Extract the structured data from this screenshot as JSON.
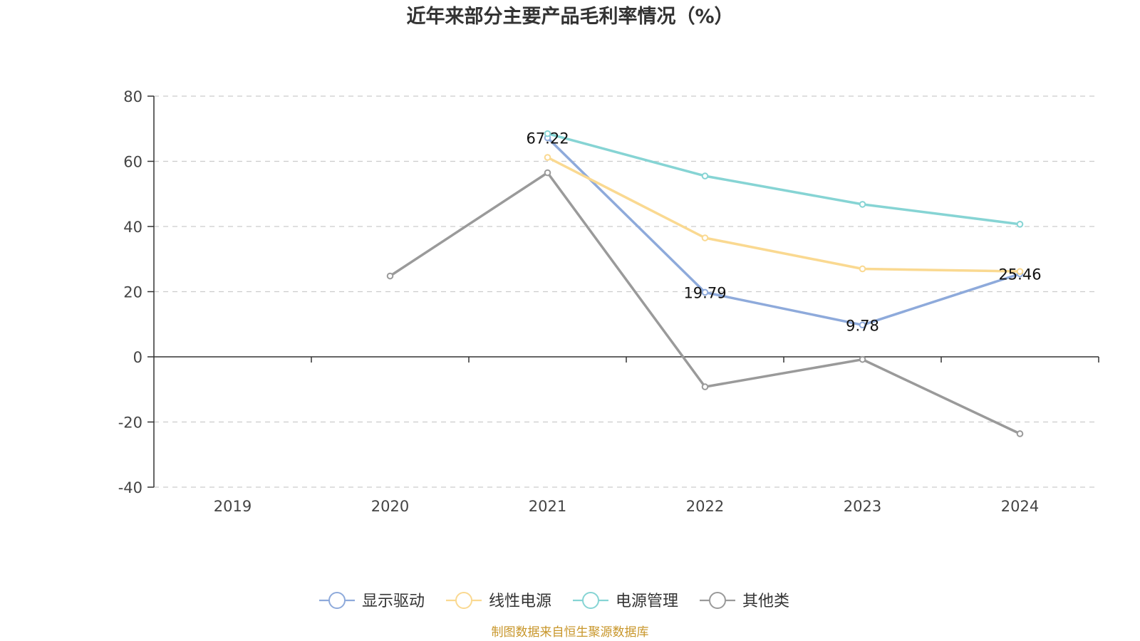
{
  "chart_data": {
    "type": "line",
    "title": "近年来部分主要产品毛利率情况（%）",
    "xlabel": "",
    "ylabel": "",
    "categories": [
      "2019",
      "2020",
      "2021",
      "2022",
      "2023",
      "2024"
    ],
    "ylim": [
      -40,
      80
    ],
    "yticks": [
      80,
      60,
      40,
      20,
      0,
      -20,
      -40
    ],
    "grid": true,
    "legend_position": "bottom",
    "series": [
      {
        "name": "显示驱动",
        "color": "#8eaadb",
        "values": [
          null,
          null,
          67.22,
          19.79,
          9.78,
          25.46
        ],
        "labels": [
          null,
          null,
          "67.22",
          "19.79",
          "9.78",
          "25.46"
        ]
      },
      {
        "name": "线性电源",
        "color": "#fad991",
        "values": [
          null,
          null,
          61.2,
          36.5,
          27.0,
          26.2
        ],
        "labels": [
          null,
          null,
          null,
          null,
          null,
          null
        ]
      },
      {
        "name": "电源管理",
        "color": "#86d4d4",
        "values": [
          null,
          null,
          68.5,
          55.5,
          46.8,
          40.7
        ],
        "labels": [
          null,
          null,
          null,
          null,
          null,
          null
        ]
      },
      {
        "name": "其他类",
        "color": "#9a9a9a",
        "values": [
          null,
          24.8,
          56.5,
          -9.2,
          -0.8,
          -23.6
        ],
        "labels": [
          null,
          null,
          null,
          null,
          null,
          null
        ]
      }
    ]
  },
  "source_note": "制图数据来自恒生聚源数据库"
}
